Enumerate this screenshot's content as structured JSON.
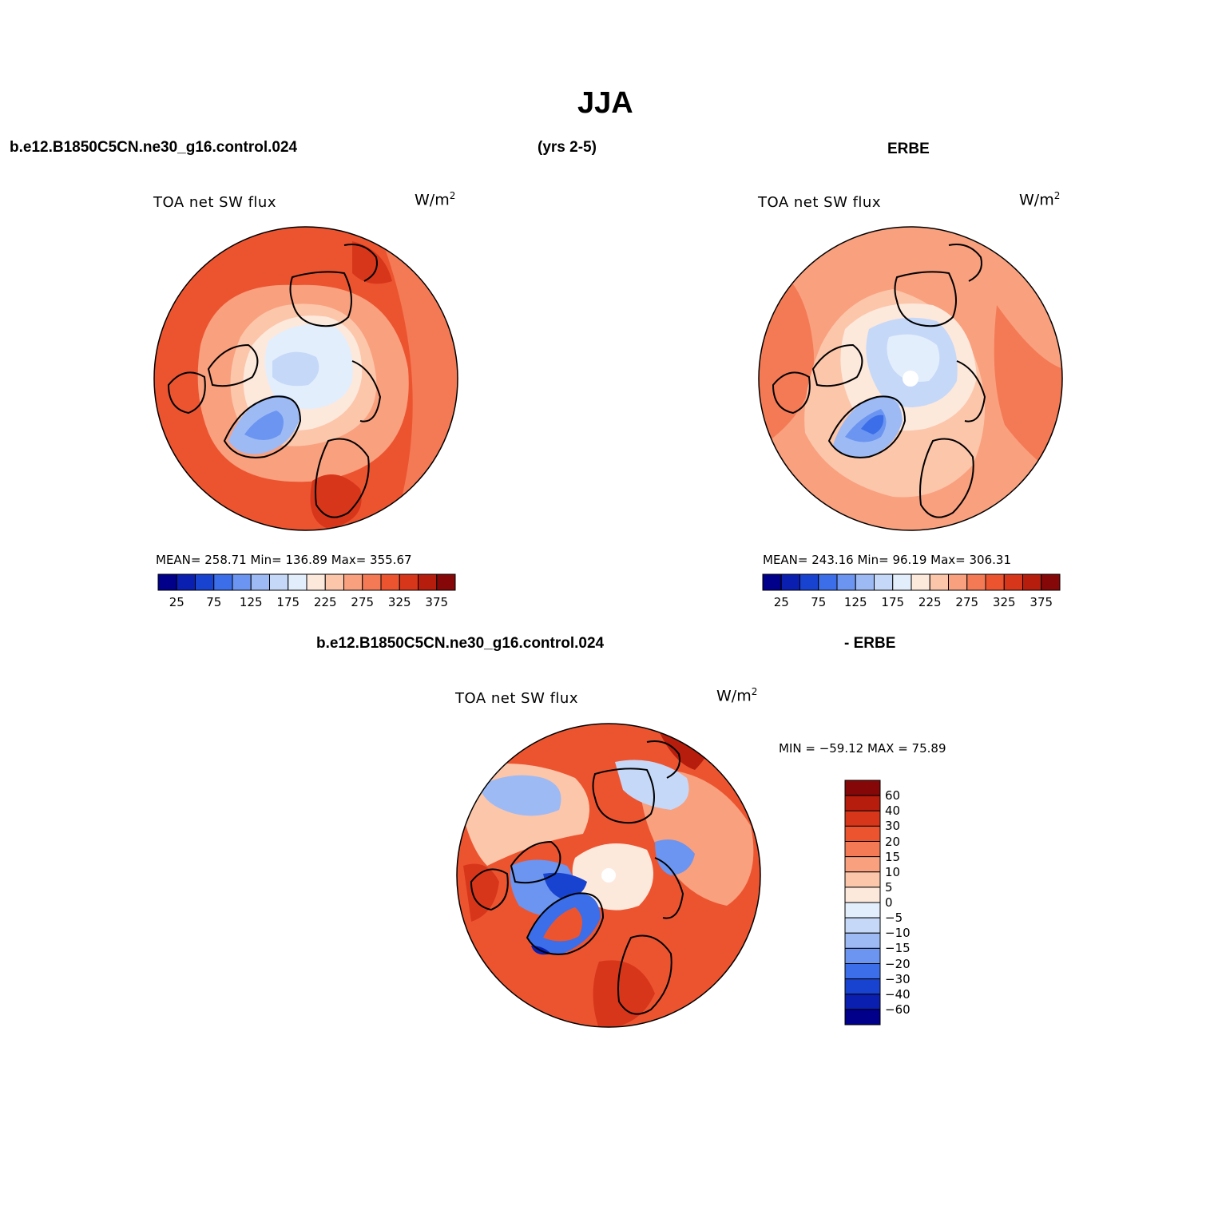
{
  "figure": {
    "title": "JJA",
    "left_header": "b.e12.B1850C5CN.ne30_g16.control.024",
    "center_header": "(yrs 2-5)",
    "right_header": "ERBE",
    "diff_header_left": "b.e12.B1850C5CN.ne30_g16.control.024",
    "diff_header_right": "- ERBE"
  },
  "panels": [
    {
      "id": "model",
      "label": "TOA net SW flux",
      "units_base": "W/m",
      "units_exp": "2",
      "stats": "MEAN= 258.71   Min= 136.89   Max= 355.67"
    },
    {
      "id": "obs",
      "label": "TOA net SW flux",
      "units_base": "W/m",
      "units_exp": "2",
      "stats": "MEAN= 243.16   Min=  96.19   Max= 306.31"
    },
    {
      "id": "diff",
      "label": "TOA net SW flux",
      "units_base": "W/m",
      "units_exp": "2",
      "stats": "MIN = −59.12 MAX =  75.89"
    }
  ],
  "colorbar_horizontal": {
    "colors": [
      "#00008a",
      "#0a1eb0",
      "#1843d0",
      "#3b6ee8",
      "#6b95f0",
      "#9dbaf5",
      "#c5d8f8",
      "#e3eefc",
      "#fde8dc",
      "#fcc6aa",
      "#f9a07e",
      "#f47a55",
      "#ec5430",
      "#d8361a",
      "#b61d0d",
      "#860707"
    ],
    "tick_labels": [
      "25",
      "75",
      "125",
      "175",
      "225",
      "275",
      "325",
      "375"
    ]
  },
  "colorbar_vertical": {
    "colors_top_to_bottom": [
      "#860707",
      "#b61d0d",
      "#d8361a",
      "#ec5430",
      "#f47a55",
      "#f9a07e",
      "#fcc6aa",
      "#fde8dc",
      "#e3eefc",
      "#c5d8f8",
      "#9dbaf5",
      "#6b95f0",
      "#3b6ee8",
      "#1843d0",
      "#0a1eb0",
      "#00008a"
    ],
    "tick_labels": [
      "60",
      "40",
      "30",
      "20",
      "15",
      "10",
      "5",
      "0",
      "−5",
      "−10",
      "−15",
      "−20",
      "−30",
      "−40",
      "−60"
    ]
  }
}
